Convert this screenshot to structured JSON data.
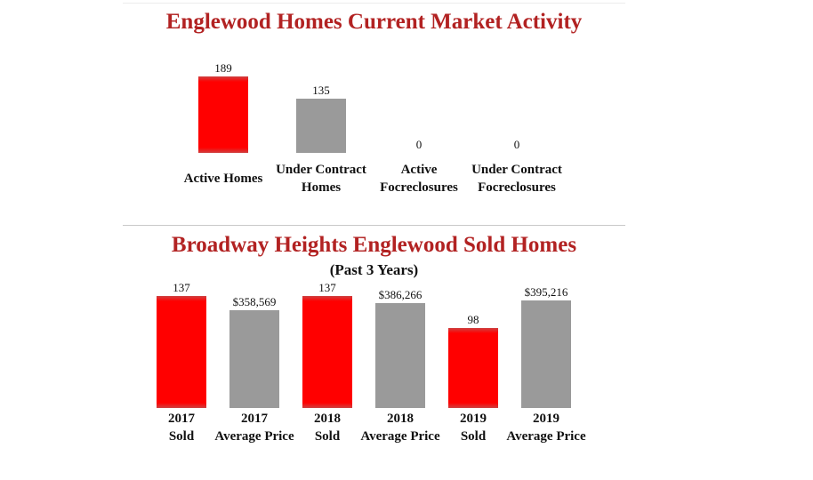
{
  "chart_data": [
    {
      "type": "bar",
      "title": "Englewood Homes Current Market Activity",
      "categories": [
        [
          "Active Homes"
        ],
        [
          "Under Contract",
          "Homes"
        ],
        [
          "Active",
          "Focreclosures"
        ],
        [
          "Under Contract",
          "Focreclosures"
        ]
      ],
      "values": [
        189,
        135,
        0,
        0
      ],
      "value_labels": [
        "189",
        "135",
        "0",
        "0"
      ],
      "colors": [
        "#ff0000",
        "#9a9a9a",
        "#ff0000",
        "#9a9a9a"
      ],
      "ylim": [
        0,
        189
      ],
      "xlabel": "",
      "ylabel": ""
    },
    {
      "type": "bar",
      "title": "Broadway Heights Englewood Sold Homes",
      "subtitle": "(Past 3 Years)",
      "categories": [
        [
          "2017",
          "Sold"
        ],
        [
          "2017",
          "Average Price"
        ],
        [
          "2018",
          "Sold"
        ],
        [
          "2018",
          "Average Price"
        ],
        [
          "2019",
          "Sold"
        ],
        [
          "2019",
          "Average Price"
        ]
      ],
      "values": [
        137,
        358569,
        137,
        386266,
        98,
        395216
      ],
      "value_labels": [
        "137",
        "$358,569",
        "137",
        "$386,266",
        "98",
        "$395,216"
      ],
      "colors": [
        "#ff0000",
        "#9a9a9a",
        "#ff0000",
        "#9a9a9a",
        "#ff0000",
        "#9a9a9a"
      ],
      "xlabel": "",
      "ylabel": ""
    }
  ]
}
